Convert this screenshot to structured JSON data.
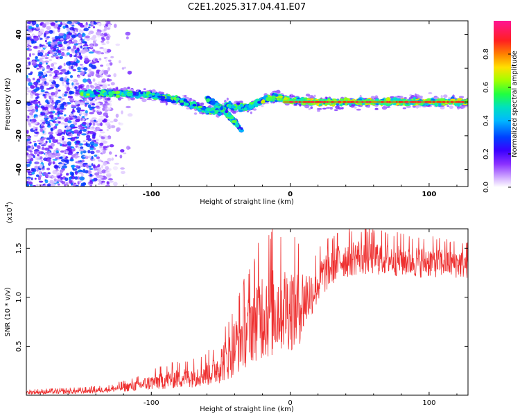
{
  "figure_title": "C2E1.2025.317.04.41.E07",
  "chart_data": [
    {
      "type": "heatmap",
      "title": "C2E1.2025.317.04.41.E07",
      "xlabel": "Height of straight line (km)",
      "ylabel": "Frequency (Hz)",
      "xlim": [
        -190,
        128
      ],
      "ylim": [
        -50,
        48
      ],
      "xticks": [
        -100,
        0,
        100
      ],
      "yticks": [
        -40,
        -20,
        0,
        20,
        40
      ],
      "colorbar": {
        "label": "Normalized spectral amplitude",
        "range": [
          0,
          1
        ],
        "ticks": [
          "0.0",
          "0.2",
          "0.4",
          "0.6",
          "0.8"
        ],
        "colormap": [
          "#ffffff",
          "#b07cff",
          "#5a00ff",
          "#0030ff",
          "#00b8ff",
          "#00e6c8",
          "#30ff60",
          "#a8ff00",
          "#ffe000",
          "#ff7000",
          "#ff1a1a",
          "#ff1493"
        ]
      },
      "features": {
        "noise_region_x": [
          -190,
          -130
        ],
        "trace_points": [
          [
            -150,
            5
          ],
          [
            -125,
            5
          ],
          [
            -100,
            4
          ],
          [
            -85,
            2
          ],
          [
            -70,
            -2
          ],
          [
            -60,
            -5
          ],
          [
            -50,
            -5
          ],
          [
            -45,
            -2
          ],
          [
            -40,
            -3
          ],
          [
            -30,
            -3
          ],
          [
            -20,
            1
          ],
          [
            -10,
            3
          ],
          [
            0,
            1
          ],
          [
            20,
            0
          ],
          [
            60,
            0
          ],
          [
            100,
            0
          ],
          [
            128,
            0
          ]
        ],
        "branch_points": [
          [
            -60,
            2
          ],
          [
            -50,
            -3
          ],
          [
            -42,
            -10
          ],
          [
            -35,
            -17
          ]
        ]
      }
    },
    {
      "type": "line",
      "xlabel": "Height of straight line (km)",
      "ylabel": "SNR (10 * v/v)",
      "y_scale_label": "(x10",
      "y_scale_exp": "4",
      "y_scale_close": ")",
      "xlim": [
        -190,
        128
      ],
      "ylim": [
        0,
        1.7
      ],
      "xticks": [
        -100,
        0,
        100
      ],
      "yticks": [
        "0.5",
        "1.0",
        "1.5"
      ],
      "color": "#ee3030",
      "series": [
        {
          "name": "SNR",
          "envelope": [
            [
              -190,
              0.03
            ],
            [
              -150,
              0.04
            ],
            [
              -130,
              0.06
            ],
            [
              -110,
              0.1
            ],
            [
              -90,
              0.16
            ],
            [
              -70,
              0.2
            ],
            [
              -55,
              0.25
            ],
            [
              -45,
              0.4
            ],
            [
              -35,
              0.6
            ],
            [
              -25,
              0.8
            ],
            [
              -15,
              0.9
            ],
            [
              -5,
              0.9
            ],
            [
              5,
              0.9
            ],
            [
              15,
              1.05
            ],
            [
              25,
              1.25
            ],
            [
              35,
              1.38
            ],
            [
              50,
              1.42
            ],
            [
              70,
              1.4
            ],
            [
              90,
              1.37
            ],
            [
              110,
              1.36
            ],
            [
              128,
              1.34
            ]
          ],
          "amplitude": [
            [
              -190,
              0.02
            ],
            [
              -130,
              0.03
            ],
            [
              -110,
              0.06
            ],
            [
              -90,
              0.1
            ],
            [
              -70,
              0.12
            ],
            [
              -55,
              0.15
            ],
            [
              -45,
              0.25
            ],
            [
              -35,
              0.35
            ],
            [
              -25,
              0.45
            ],
            [
              -15,
              0.55
            ],
            [
              -5,
              0.45
            ],
            [
              5,
              0.45
            ],
            [
              15,
              0.25
            ],
            [
              30,
              0.2
            ],
            [
              128,
              0.15
            ]
          ]
        }
      ]
    }
  ]
}
